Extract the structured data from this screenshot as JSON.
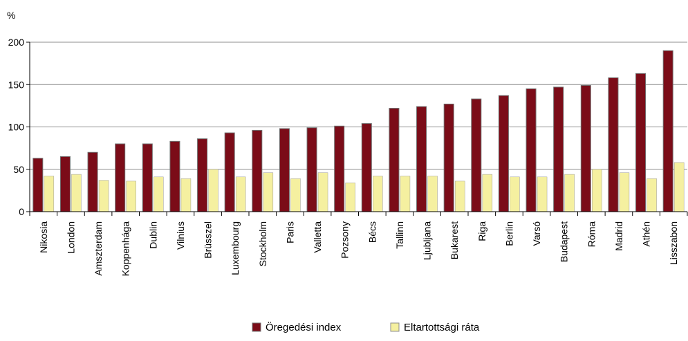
{
  "chart_data": {
    "type": "bar",
    "ylabel": "%",
    "ylim": [
      0,
      200
    ],
    "yticks": [
      0,
      50,
      100,
      150,
      200
    ],
    "grid": true,
    "legend_position": "bottom",
    "categories": [
      "Nikosia",
      "London",
      "Amszterdam",
      "Koppenhága",
      "Dublin",
      "Vilnius",
      "Brüsszel",
      "Luxembourg",
      "Stockholm",
      "Paris",
      "Valletta",
      "Pozsony",
      "Bécs",
      "Tallinn",
      "Ljubljana",
      "Bukarest",
      "Riga",
      "Berlin",
      "Varsó",
      "Budapest",
      "Róma",
      "Madrid",
      "Athén",
      "Lisszabon"
    ],
    "series": [
      {
        "name": "Öregedési index",
        "color": "#7b0c18",
        "values": [
          63,
          65,
          70,
          80,
          80,
          83,
          86,
          93,
          96,
          98,
          99,
          101,
          104,
          122,
          124,
          127,
          133,
          137,
          145,
          147,
          149,
          158,
          163,
          190
        ]
      },
      {
        "name": "Eltartottsági ráta",
        "color": "#f5f0a0",
        "values": [
          42,
          44,
          37,
          36,
          41,
          39,
          50,
          41,
          46,
          39,
          46,
          34,
          42,
          42,
          42,
          36,
          44,
          41,
          41,
          44,
          50,
          46,
          39,
          58
        ]
      }
    ]
  }
}
